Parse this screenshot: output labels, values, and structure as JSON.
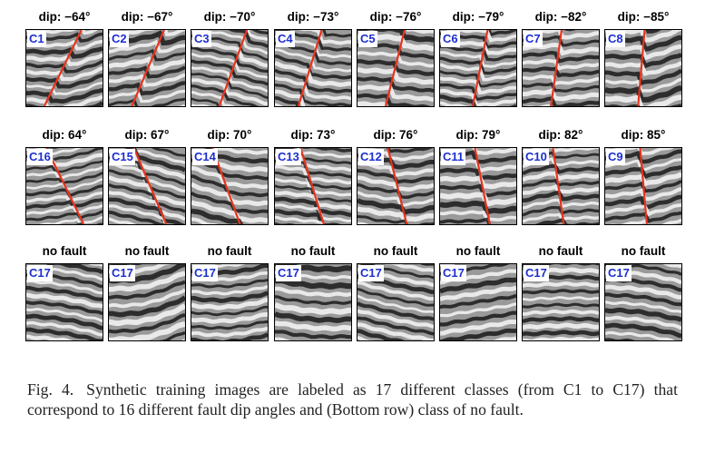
{
  "figure": {
    "rows": [
      [
        {
          "title": "dip: −64°",
          "label": "C1",
          "dip": -64,
          "fault": true
        },
        {
          "title": "dip: −67°",
          "label": "C2",
          "dip": -67,
          "fault": true
        },
        {
          "title": "dip: −70°",
          "label": "C3",
          "dip": -70,
          "fault": true
        },
        {
          "title": "dip: −73°",
          "label": "C4",
          "dip": -73,
          "fault": true
        },
        {
          "title": "dip: −76°",
          "label": "C5",
          "dip": -76,
          "fault": true
        },
        {
          "title": "dip: −79°",
          "label": "C6",
          "dip": -79,
          "fault": true
        },
        {
          "title": "dip: −82°",
          "label": "C7",
          "dip": -82,
          "fault": true
        },
        {
          "title": "dip: −85°",
          "label": "C8",
          "dip": -85,
          "fault": true
        }
      ],
      [
        {
          "title": "dip: 64°",
          "label": "C16",
          "dip": 64,
          "fault": true
        },
        {
          "title": "dip: 67°",
          "label": "C15",
          "dip": 67,
          "fault": true
        },
        {
          "title": "dip: 70°",
          "label": "C14",
          "dip": 70,
          "fault": true
        },
        {
          "title": "dip: 73°",
          "label": "C13",
          "dip": 73,
          "fault": true
        },
        {
          "title": "dip: 76°",
          "label": "C12",
          "dip": 76,
          "fault": true
        },
        {
          "title": "dip: 79°",
          "label": "C11",
          "dip": 79,
          "fault": true
        },
        {
          "title": "dip: 82°",
          "label": "C10",
          "dip": 82,
          "fault": true
        },
        {
          "title": "dip: 85°",
          "label": "C9",
          "dip": 85,
          "fault": true
        }
      ],
      [
        {
          "title": "no fault",
          "label": "C17",
          "fault": false
        },
        {
          "title": "no fault",
          "label": "C17",
          "fault": false
        },
        {
          "title": "no fault",
          "label": "C17",
          "fault": false
        },
        {
          "title": "no fault",
          "label": "C17",
          "fault": false
        },
        {
          "title": "no fault",
          "label": "C17",
          "fault": false
        },
        {
          "title": "no fault",
          "label": "C17",
          "fault": false
        },
        {
          "title": "no fault",
          "label": "C17",
          "fault": false
        },
        {
          "title": "no fault",
          "label": "C17",
          "fault": false
        }
      ]
    ],
    "colors": {
      "fault_line": "#e8331c",
      "label_text": "#1d2fcf"
    }
  },
  "caption": {
    "figure_label": "Fig. 4.",
    "text": "Synthetic training images are labeled as 17 different classes (from C1 to C17) that correspond to 16 different fault dip angles and (Bottom row) class of no fault."
  }
}
